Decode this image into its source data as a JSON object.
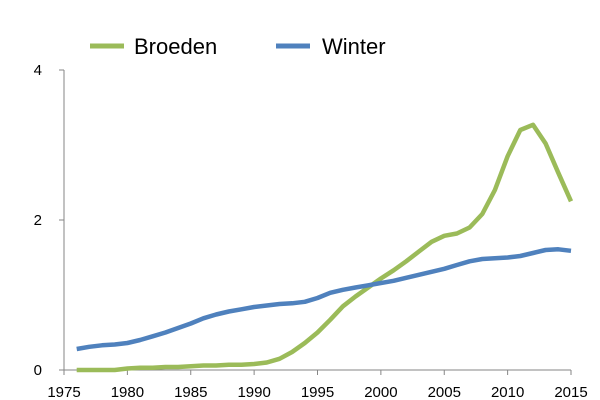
{
  "chart_data": {
    "type": "line",
    "title": "",
    "xlabel": "",
    "ylabel": "",
    "xlim": [
      1975,
      2015
    ],
    "ylim": [
      0,
      4
    ],
    "x_ticks": [
      "1975",
      "1980",
      "1985",
      "1990",
      "1995",
      "2000",
      "2005",
      "2010",
      "2015"
    ],
    "y_ticks": [
      "0",
      "2",
      "4"
    ],
    "grid": false,
    "legend": "top",
    "series": [
      {
        "name": "Broeden",
        "color": "#9BBB59",
        "x": [
          1976,
          1977,
          1978,
          1979,
          1980,
          1981,
          1982,
          1983,
          1984,
          1985,
          1986,
          1987,
          1988,
          1989,
          1990,
          1991,
          1992,
          1993,
          1994,
          1995,
          1996,
          1997,
          1998,
          1999,
          2000,
          2001,
          2002,
          2003,
          2004,
          2005,
          2006,
          2007,
          2008,
          2009,
          2010,
          2011,
          2012,
          2013,
          2014,
          2015
        ],
        "values": [
          0.0,
          0.0,
          0.0,
          0.0,
          0.02,
          0.03,
          0.03,
          0.04,
          0.04,
          0.05,
          0.06,
          0.06,
          0.07,
          0.07,
          0.08,
          0.1,
          0.15,
          0.24,
          0.36,
          0.5,
          0.67,
          0.85,
          0.98,
          1.1,
          1.22,
          1.33,
          1.45,
          1.58,
          1.71,
          1.79,
          1.82,
          1.9,
          2.08,
          2.4,
          2.85,
          3.2,
          3.27,
          3.02,
          2.63,
          2.25
        ]
      },
      {
        "name": "Winter",
        "color": "#4F81BD",
        "x": [
          1976,
          1977,
          1978,
          1979,
          1980,
          1981,
          1982,
          1983,
          1984,
          1985,
          1986,
          1987,
          1988,
          1989,
          1990,
          1991,
          1992,
          1993,
          1994,
          1995,
          1996,
          1997,
          1998,
          1999,
          2000,
          2001,
          2002,
          2003,
          2004,
          2005,
          2006,
          2007,
          2008,
          2009,
          2010,
          2011,
          2012,
          2013,
          2014,
          2015
        ],
        "values": [
          0.28,
          0.31,
          0.33,
          0.34,
          0.36,
          0.4,
          0.45,
          0.5,
          0.56,
          0.62,
          0.69,
          0.74,
          0.78,
          0.81,
          0.84,
          0.86,
          0.88,
          0.89,
          0.91,
          0.96,
          1.03,
          1.07,
          1.1,
          1.13,
          1.16,
          1.19,
          1.23,
          1.27,
          1.31,
          1.35,
          1.4,
          1.45,
          1.48,
          1.49,
          1.5,
          1.52,
          1.56,
          1.6,
          1.61,
          1.59
        ]
      }
    ]
  }
}
